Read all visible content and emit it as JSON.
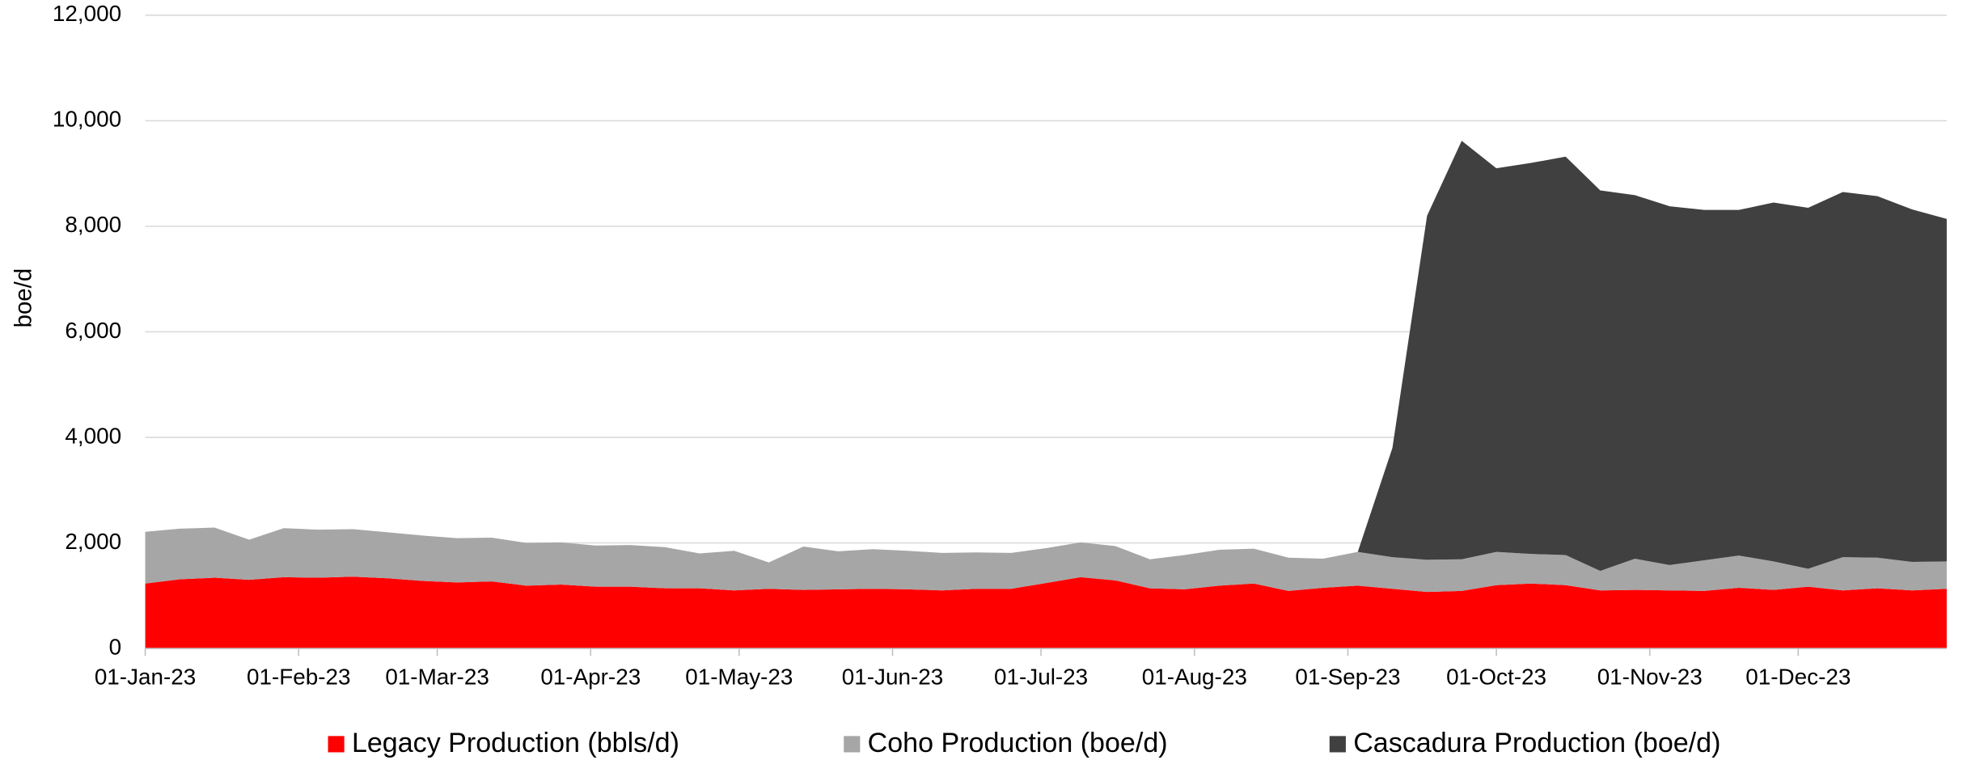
{
  "chart_data": {
    "type": "area",
    "stacked": true,
    "y_label": "boe/d",
    "x": [
      "01-Jan-23",
      "08-Jan-23",
      "15-Jan-23",
      "22-Jan-23",
      "29-Jan-23",
      "05-Feb-23",
      "12-Feb-23",
      "19-Feb-23",
      "26-Feb-23",
      "05-Mar-23",
      "12-Mar-23",
      "19-Mar-23",
      "26-Mar-23",
      "02-Apr-23",
      "09-Apr-23",
      "16-Apr-23",
      "23-Apr-23",
      "30-Apr-23",
      "07-May-23",
      "14-May-23",
      "21-May-23",
      "28-May-23",
      "04-Jun-23",
      "11-Jun-23",
      "18-Jun-23",
      "25-Jun-23",
      "02-Jul-23",
      "09-Jul-23",
      "16-Jul-23",
      "23-Jul-23",
      "30-Jul-23",
      "06-Aug-23",
      "13-Aug-23",
      "20-Aug-23",
      "27-Aug-23",
      "03-Sep-23",
      "10-Sep-23",
      "17-Sep-23",
      "24-Sep-23",
      "01-Oct-23",
      "08-Oct-23",
      "15-Oct-23",
      "22-Oct-23",
      "29-Oct-23",
      "05-Nov-23",
      "12-Nov-23",
      "19-Nov-23",
      "26-Nov-23",
      "03-Dec-23",
      "10-Dec-23",
      "17-Dec-23",
      "24-Dec-23",
      "31-Dec-23"
    ],
    "series": [
      {
        "name": "Legacy Production (bbls/d)",
        "color": "#ff0000",
        "values": [
          1230,
          1310,
          1340,
          1300,
          1350,
          1340,
          1360,
          1330,
          1280,
          1250,
          1270,
          1190,
          1210,
          1170,
          1170,
          1140,
          1140,
          1100,
          1130,
          1110,
          1120,
          1130,
          1120,
          1100,
          1130,
          1130,
          1240,
          1350,
          1290,
          1140,
          1120,
          1190,
          1230,
          1090,
          1150,
          1190,
          1130,
          1070,
          1090,
          1200,
          1230,
          1200,
          1100,
          1110,
          1100,
          1090,
          1150,
          1110,
          1170,
          1100,
          1140,
          1100,
          1130
        ]
      },
      {
        "name": "Coho Production (boe/d)",
        "color": "#a6a6a6",
        "values": [
          980,
          960,
          950,
          760,
          930,
          910,
          900,
          870,
          860,
          840,
          830,
          810,
          800,
          780,
          790,
          780,
          660,
          750,
          500,
          820,
          720,
          750,
          730,
          710,
          690,
          680,
          660,
          660,
          650,
          550,
          650,
          680,
          660,
          630,
          550,
          640,
          600,
          610,
          600,
          630,
          560,
          570,
          370,
          590,
          480,
          580,
          610,
          540,
          340,
          630,
          580,
          540,
          520
        ]
      },
      {
        "name": "Cascadura Production (boe/d)",
        "color": "#404040",
        "values": [
          0,
          0,
          0,
          0,
          0,
          0,
          0,
          0,
          0,
          0,
          0,
          0,
          0,
          0,
          0,
          0,
          0,
          0,
          0,
          0,
          0,
          0,
          0,
          0,
          0,
          0,
          0,
          0,
          0,
          0,
          0,
          0,
          0,
          0,
          0,
          0,
          2070,
          6520,
          7930,
          7270,
          7410,
          7550,
          7210,
          6890,
          6800,
          6640,
          6550,
          6800,
          6840,
          6920,
          6850,
          6680,
          6490
        ]
      }
    ],
    "xlim": [
      "01-Jan-23",
      "31-Dec-23"
    ],
    "xticks": [
      "01-Jan-23",
      "01-Feb-23",
      "01-Mar-23",
      "01-Apr-23",
      "01-May-23",
      "01-Jun-23",
      "01-Jul-23",
      "01-Aug-23",
      "01-Sep-23",
      "01-Oct-23",
      "01-Nov-23",
      "01-Dec-23"
    ],
    "ylim": [
      0,
      12000
    ],
    "yticks": [
      0,
      {
        "value": 2000,
        "label": "2,000"
      },
      {
        "value": 4000,
        "label": "4,000"
      },
      {
        "value": 6000,
        "label": "6,000"
      },
      {
        "value": 8000,
        "label": "8,000"
      },
      {
        "value": 10000,
        "label": "10,000"
      },
      {
        "value": 12000,
        "label": "12,000"
      }
    ],
    "grid": true,
    "legend": "bottom"
  }
}
